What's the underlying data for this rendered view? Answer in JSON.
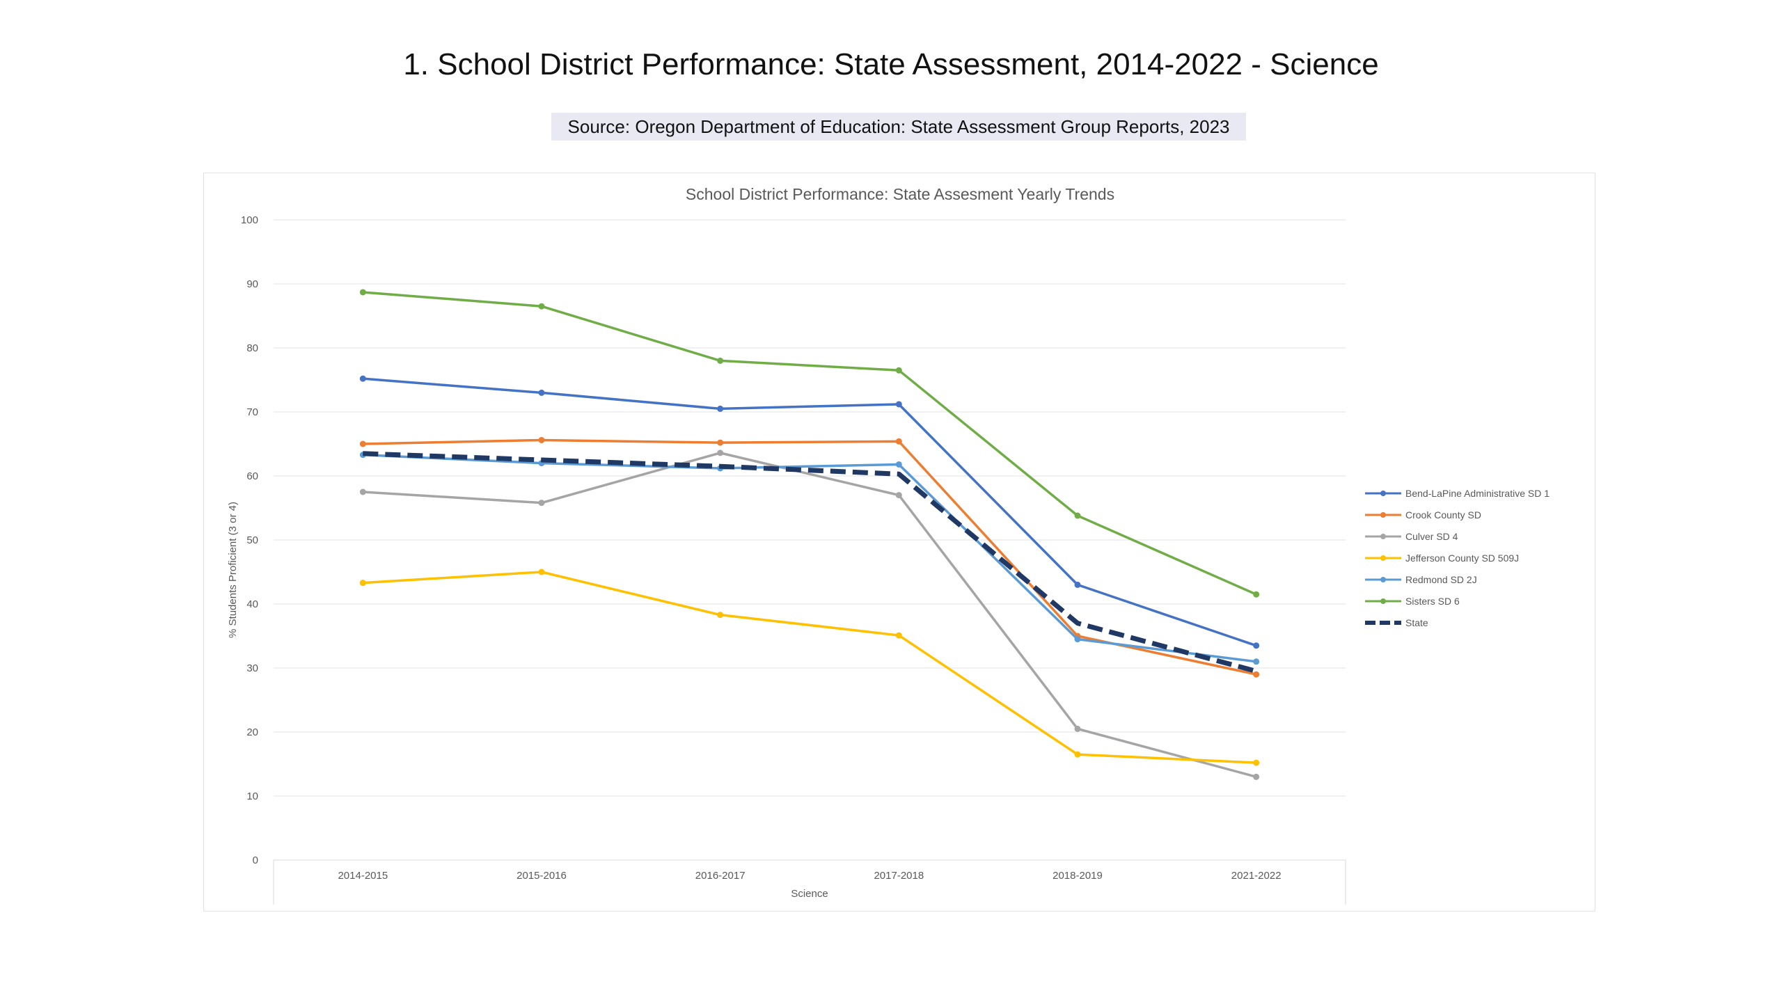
{
  "page": {
    "title": "1. School District Performance: State Assessment, 2014-2022 - Science",
    "source": "Source: Oregon Department of Education: State Assessment Group Reports, 2023"
  },
  "chart_data": {
    "type": "line",
    "title": "School District Performance: State Assesment Yearly Trends",
    "xlabel": "Science",
    "ylabel": "% Students Proficient (3 or 4)",
    "ylim": [
      0,
      100
    ],
    "yticks": [
      0,
      10,
      20,
      30,
      40,
      50,
      60,
      70,
      80,
      90,
      100
    ],
    "grid": true,
    "legend_position": "right",
    "categories": [
      "2014-2015",
      "2015-2016",
      "2016-2017",
      "2017-2018",
      "2018-2019",
      "2021-2022"
    ],
    "series": [
      {
        "name": "Bend-LaPine Administrative SD 1",
        "color": "#4472c4",
        "dashed": false,
        "values": [
          75.2,
          73.0,
          70.5,
          71.2,
          43.0,
          33.5
        ]
      },
      {
        "name": "Crook County SD",
        "color": "#ed7d31",
        "dashed": false,
        "values": [
          65.0,
          65.6,
          65.2,
          65.4,
          35.0,
          29.0
        ]
      },
      {
        "name": "Culver SD 4",
        "color": "#a5a5a5",
        "dashed": false,
        "values": [
          57.5,
          55.8,
          63.6,
          57.0,
          20.5,
          13.0
        ]
      },
      {
        "name": "Jefferson County SD 509J",
        "color": "#ffc000",
        "dashed": false,
        "values": [
          43.3,
          45.0,
          38.3,
          35.1,
          16.5,
          15.2
        ]
      },
      {
        "name": "Redmond SD 2J",
        "color": "#5b9bd5",
        "dashed": false,
        "values": [
          63.3,
          62.0,
          61.2,
          61.8,
          34.5,
          31.0
        ]
      },
      {
        "name": "Sisters SD 6",
        "color": "#70ad47",
        "dashed": false,
        "values": [
          88.7,
          86.5,
          78.0,
          76.5,
          53.8,
          41.5
        ]
      },
      {
        "name": "State",
        "color": "#203864",
        "dashed": true,
        "values": [
          63.5,
          62.5,
          61.5,
          60.3,
          37.0,
          29.5
        ]
      }
    ]
  }
}
